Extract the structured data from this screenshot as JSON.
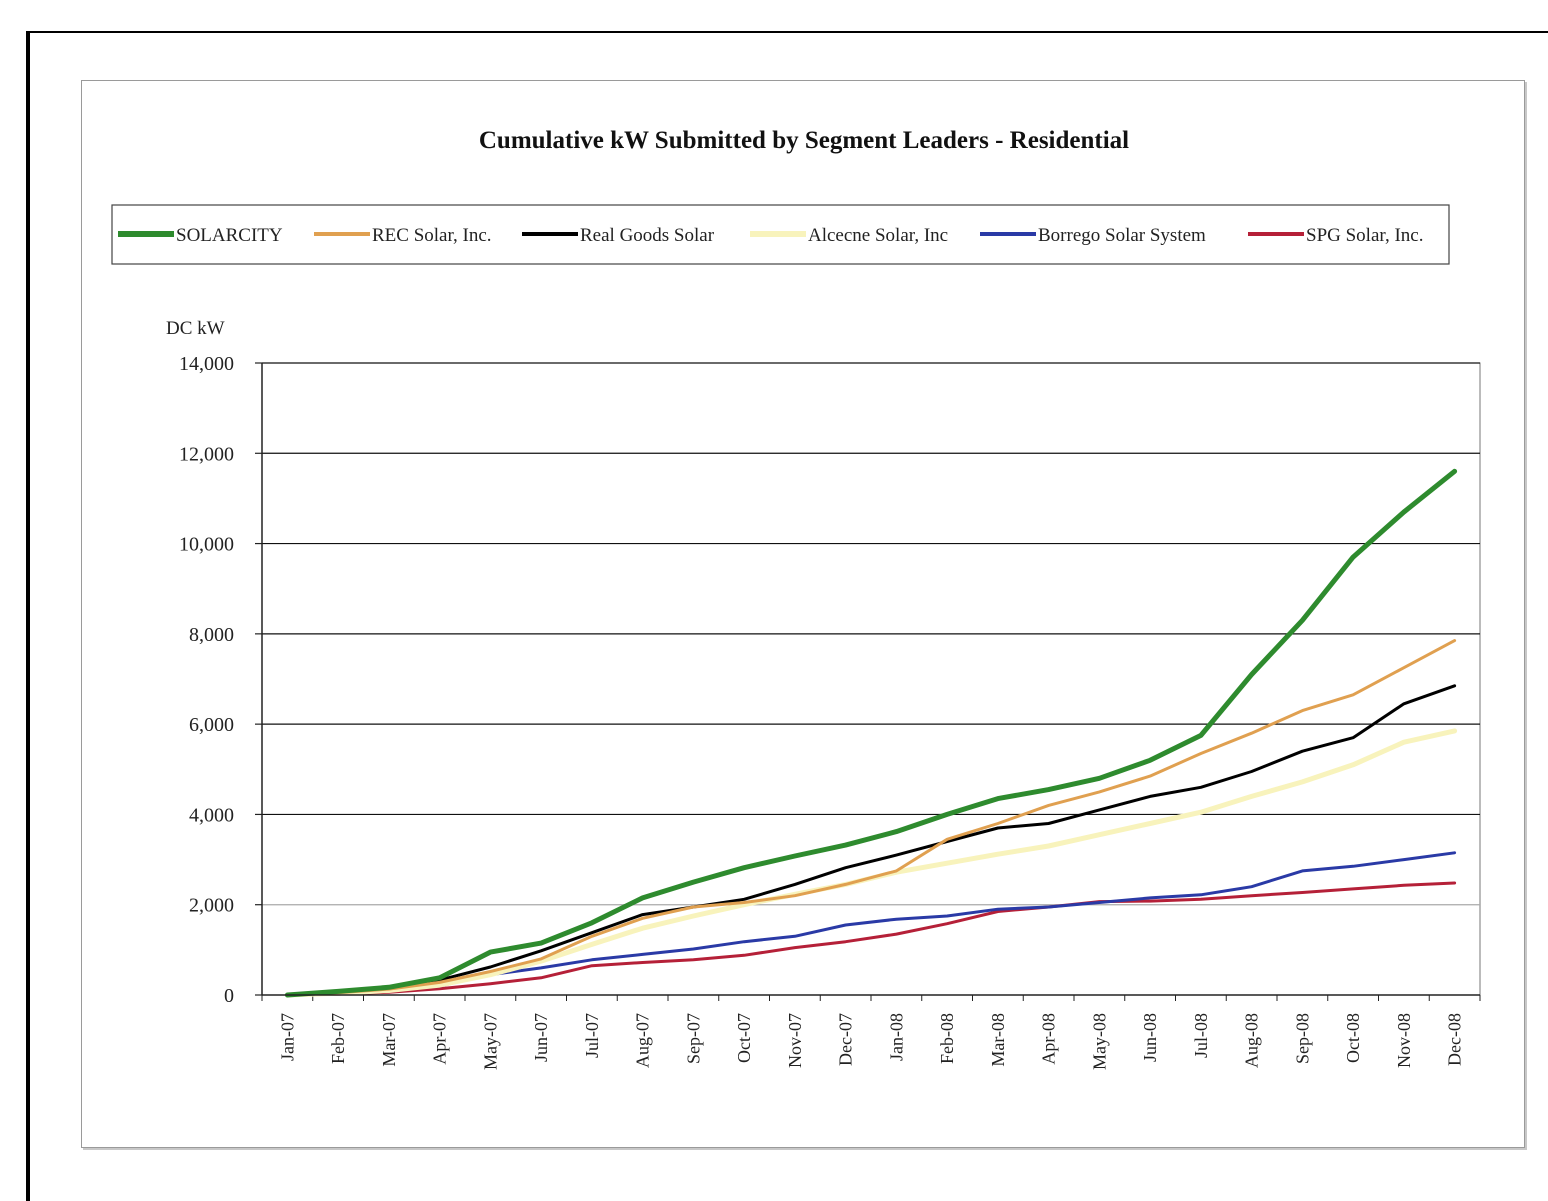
{
  "chart_data": {
    "type": "line",
    "title": "Cumulative kW Submitted by Segment Leaders - Residential",
    "ylabel": "DC kW",
    "xlabel": "",
    "ylim": [
      0,
      14000
    ],
    "yticks": [
      "0",
      "2,000",
      "4,000",
      "6,000",
      "8,000",
      "10,000",
      "12,000",
      "14,000"
    ],
    "ytick_values": [
      0,
      2000,
      4000,
      6000,
      8000,
      10000,
      12000,
      14000
    ],
    "categories": [
      "Jan-07",
      "Feb-07",
      "Mar-07",
      "Apr-07",
      "May-07",
      "Jun-07",
      "Jul-07",
      "Aug-07",
      "Sep-07",
      "Oct-07",
      "Nov-07",
      "Dec-07",
      "Jan-08",
      "Feb-08",
      "Mar-08",
      "Apr-08",
      "May-08",
      "Jun-08",
      "Jul-08",
      "Aug-08",
      "Sep-08",
      "Oct-08",
      "Nov-08",
      "Dec-08"
    ],
    "grid": true,
    "legend_position": "top",
    "series": [
      {
        "name": "SOLARCITY",
        "color": "#2e8b2e",
        "width": 5,
        "values": [
          0,
          80,
          170,
          380,
          950,
          1150,
          1600,
          2150,
          2500,
          2820,
          3080,
          3320,
          3620,
          4000,
          4350,
          4550,
          4800,
          5200,
          5750,
          7100,
          8300,
          9700,
          10700,
          11600
        ]
      },
      {
        "name": "REC Solar, Inc.",
        "color": "#e0a050",
        "width": 3,
        "values": [
          0,
          50,
          130,
          280,
          520,
          800,
          1300,
          1700,
          1950,
          2050,
          2200,
          2450,
          2750,
          3450,
          3800,
          4200,
          4500,
          4850,
          5350,
          5800,
          6300,
          6650,
          7250,
          7850
        ]
      },
      {
        "name": "Real Goods Solar",
        "color": "#000000",
        "width": 3,
        "values": [
          0,
          70,
          150,
          330,
          620,
          980,
          1380,
          1780,
          1950,
          2120,
          2450,
          2820,
          3100,
          3400,
          3700,
          3800,
          4100,
          4400,
          4600,
          4950,
          5400,
          5700,
          6450,
          6850
        ]
      },
      {
        "name": "Alcecne Solar, Inc",
        "color": "#f8f3bc",
        "width": 5,
        "values": [
          0,
          40,
          100,
          220,
          450,
          750,
          1120,
          1480,
          1750,
          2000,
          2230,
          2450,
          2720,
          2920,
          3120,
          3300,
          3550,
          3800,
          4050,
          4400,
          4720,
          5100,
          5600,
          5850
        ]
      },
      {
        "name": "Borrego Solar System",
        "color": "#2a3aa6",
        "width": 3,
        "values": [
          0,
          40,
          100,
          200,
          450,
          600,
          780,
          900,
          1020,
          1180,
          1300,
          1550,
          1680,
          1750,
          1900,
          1950,
          2050,
          2150,
          2220,
          2400,
          2750,
          2850,
          3000,
          3150
        ]
      },
      {
        "name": "SPG Solar, Inc.",
        "color": "#b52038",
        "width": 3,
        "values": [
          0,
          20,
          60,
          140,
          250,
          380,
          650,
          720,
          780,
          880,
          1050,
          1180,
          1350,
          1580,
          1850,
          1950,
          2070,
          2080,
          2120,
          2200,
          2270,
          2350,
          2430,
          2480
        ]
      }
    ]
  }
}
